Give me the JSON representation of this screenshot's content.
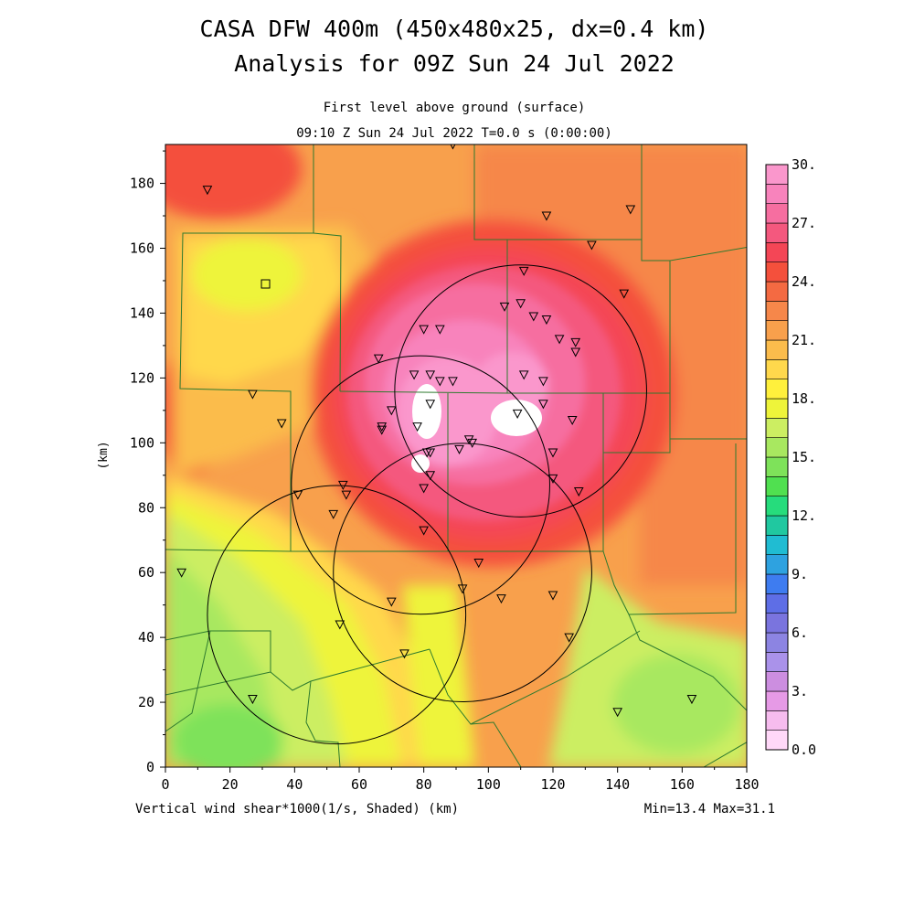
{
  "title": {
    "line1": "CASA DFW 400m (450x480x25, dx=0.4 km)",
    "line2": "Analysis for 09Z Sun 24 Jul 2022"
  },
  "subtitle": {
    "line1": "First level above ground (surface)",
    "line2": "09:10 Z Sun 24 Jul 2022   T=0.0 s (0:00:00)"
  },
  "footer": {
    "field_label": "Vertical wind shear*1000(1/s, Shaded)  (km)",
    "minmax": "Min=13.4 Max=31.1"
  },
  "axes": {
    "x": {
      "label": "",
      "range": [
        0,
        180
      ],
      "ticks": [
        "0",
        "20",
        "40",
        "60",
        "80",
        "100",
        "120",
        "140",
        "160",
        "180"
      ]
    },
    "y": {
      "label": "(km)",
      "range": [
        0,
        192
      ],
      "ticks": [
        "0",
        "20",
        "40",
        "60",
        "80",
        "100",
        "120",
        "140",
        "160",
        "180"
      ]
    }
  },
  "colorbar": {
    "labels": [
      "0.0",
      "3.",
      "6.",
      "9.",
      "12.",
      "15.",
      "18.",
      "21.",
      "24.",
      "27.",
      "30."
    ],
    "colors": [
      "#ffd8f8",
      "#f6bcee",
      "#e69ae6",
      "#cc8ee0",
      "#aa92ea",
      "#8c84e2",
      "#7a74de",
      "#5e6ee6",
      "#3e7cf0",
      "#2ea2e0",
      "#20bcd2",
      "#20c8a0",
      "#26dc7c",
      "#50e050",
      "#7ee25a",
      "#a8e860",
      "#ccee62",
      "#eef43a",
      "#fff03c",
      "#ffd84c",
      "#fbbc4c",
      "#f8a04c",
      "#f6874a",
      "#f46a42",
      "#f4503c",
      "#f44656",
      "#f4587e",
      "#f66ea0",
      "#f883bc",
      "#fa97cc"
    ]
  },
  "map": {
    "radar_circles": [
      {
        "x": 110,
        "y": 116,
        "r": 39
      },
      {
        "x": 79,
        "y": 87,
        "r": 40
      },
      {
        "x": 92,
        "y": 60,
        "r": 40
      },
      {
        "x": 53,
        "y": 47,
        "r": 40
      }
    ],
    "stations_triangle": [
      [
        13,
        178
      ],
      [
        89,
        192
      ],
      [
        118,
        170
      ],
      [
        144,
        172
      ],
      [
        132,
        161
      ],
      [
        142,
        146
      ],
      [
        111,
        153
      ],
      [
        110,
        143
      ],
      [
        105,
        142
      ],
      [
        114,
        139
      ],
      [
        118,
        138
      ],
      [
        122,
        132
      ],
      [
        127,
        131
      ],
      [
        127,
        128
      ],
      [
        80,
        135
      ],
      [
        85,
        135
      ],
      [
        66,
        126
      ],
      [
        77,
        121
      ],
      [
        82,
        121
      ],
      [
        85,
        119
      ],
      [
        89,
        119
      ],
      [
        111,
        121
      ],
      [
        117,
        119
      ],
      [
        109,
        109
      ],
      [
        117,
        112
      ],
      [
        126,
        107
      ],
      [
        70,
        110
      ],
      [
        67,
        105
      ],
      [
        67,
        104
      ],
      [
        78,
        105
      ],
      [
        82,
        112
      ],
      [
        94,
        101
      ],
      [
        95,
        100
      ],
      [
        91,
        98
      ],
      [
        120,
        97
      ],
      [
        81,
        97
      ],
      [
        82,
        97
      ],
      [
        80,
        86
      ],
      [
        82,
        90
      ],
      [
        120,
        89
      ],
      [
        128,
        85
      ],
      [
        27,
        115
      ],
      [
        36,
        106
      ],
      [
        55,
        87
      ],
      [
        56,
        84
      ],
      [
        41,
        84
      ],
      [
        52,
        78
      ],
      [
        80,
        73
      ],
      [
        5,
        60
      ],
      [
        97,
        63
      ],
      [
        92,
        55
      ],
      [
        70,
        51
      ],
      [
        104,
        52
      ],
      [
        120,
        53
      ],
      [
        54,
        44
      ],
      [
        74,
        35
      ],
      [
        125,
        40
      ],
      [
        27,
        21
      ],
      [
        140,
        17
      ],
      [
        163,
        21
      ]
    ],
    "station_square": [
      31,
      149
    ]
  }
}
